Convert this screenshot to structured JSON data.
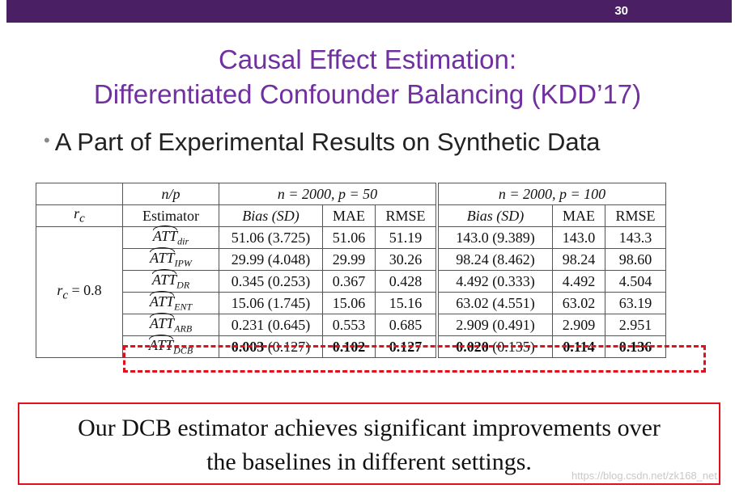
{
  "slide": {
    "page_number": "30",
    "title_line1": "Causal Effect Estimation:",
    "title_line2": "Differentiated Confounder Balancing (KDD’17)",
    "bullet": "A Part of Experimental Results on Synthetic Data"
  },
  "table": {
    "header1": {
      "np": "n/p",
      "group1": "n = 2000, p = 50",
      "group2": "n = 2000, p = 100"
    },
    "header2": {
      "rc": "r",
      "rc_sub": "c",
      "estimator": "Estimator",
      "cols": [
        "Bias (SD)",
        "MAE",
        "RMSE",
        "Bias (SD)",
        "MAE",
        "RMSE"
      ]
    },
    "row_group": {
      "label": "r",
      "label_sub": "c",
      "label_rest": " = 0.8"
    },
    "rows": [
      {
        "att": "ATT",
        "sub": "dir",
        "cells": [
          "51.06 (3.725)",
          "51.06",
          "51.19",
          "143.0 (9.389)",
          "143.0",
          "143.3"
        ]
      },
      {
        "att": "ATT",
        "sub": "IPW",
        "cells": [
          "29.99 (4.048)",
          "29.99",
          "30.26",
          "98.24 (8.462)",
          "98.24",
          "98.60"
        ]
      },
      {
        "att": "ATT",
        "sub": "DR",
        "cells": [
          "0.345 (0.253)",
          "0.367",
          "0.428",
          "4.492 (0.333)",
          "4.492",
          "4.504"
        ]
      },
      {
        "att": "ATT",
        "sub": "ENT",
        "cells": [
          "15.06 (1.745)",
          "15.06",
          "15.16",
          "63.02 (4.551)",
          "63.02",
          "63.19"
        ]
      },
      {
        "att": "ATT",
        "sub": "ARB",
        "cells": [
          "0.231 (0.645)",
          "0.553",
          "0.685",
          "2.909 (0.491)",
          "2.909",
          "2.951"
        ]
      },
      {
        "att": "ATT",
        "sub": "DCB",
        "bias1_bold": "0.003",
        "bias1_rest": " (0.127)",
        "mae1": "0.102",
        "rmse1": "0.127",
        "bias2_bold": "0.020",
        "bias2_rest": " (0.135)",
        "mae2": "0.114",
        "rmse2": "0.136"
      }
    ]
  },
  "conclusion": {
    "line1": "Our DCB estimator achieves significant improvements over",
    "line2": "the baselines in different settings."
  },
  "watermark": "https://blog.csdn.net/zk168_net",
  "colors": {
    "title": "#7030a0",
    "topbar": "#4a1f63",
    "highlight": "#e0101e"
  }
}
